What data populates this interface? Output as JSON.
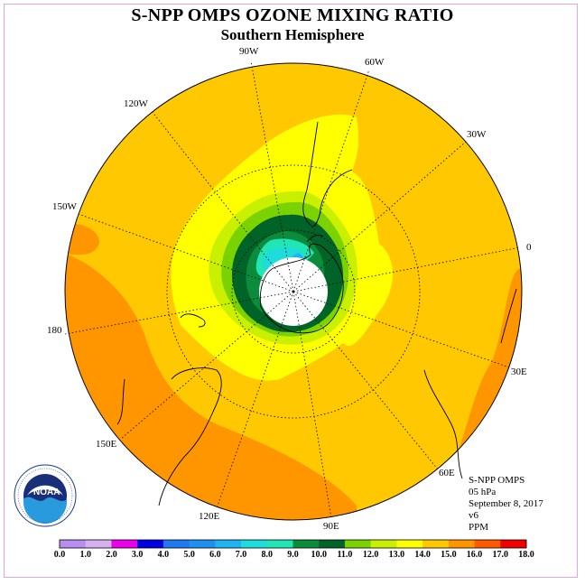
{
  "title": "S-NPP OMPS OZONE MIXING RATIO",
  "subtitle": "Southern Hemisphere",
  "longitude_labels": [
    "90W",
    "60W",
    "30W",
    "0",
    "30E",
    "60E",
    "90E",
    "120E",
    "150E",
    "180",
    "150W",
    "120W"
  ],
  "info": {
    "instrument": "S-NPP OMPS",
    "level": "05 hPa",
    "date": "September 8, 2017",
    "version": "v6",
    "units": "PPM"
  },
  "logo": {
    "text": "NOAA",
    "ring_text": "NATIONAL OCEANIC AND ATMOSPHERIC ADMINISTRATION · U.S. DEPARTMENT OF COMMERCE"
  },
  "colorbar": {
    "ticks": [
      "0.0",
      "1.0",
      "2.0",
      "3.0",
      "4.0",
      "5.0",
      "6.0",
      "7.0",
      "8.0",
      "9.0",
      "10.0",
      "11.0",
      "12.0",
      "13.0",
      "14.0",
      "15.0",
      "16.0",
      "17.0",
      "18.0"
    ],
    "colors": [
      "#b98cf0",
      "#d6b0f2",
      "#ea00ea",
      "#0000e0",
      "#1e78f0",
      "#1e90f0",
      "#1eb4f0",
      "#1edcdc",
      "#1fe6b4",
      "#0a8c3c",
      "#006428",
      "#7ad200",
      "#c8f000",
      "#ffff00",
      "#ffc800",
      "#ff9600",
      "#ff5a00",
      "#f00000",
      "#8c5a3c"
    ]
  },
  "colors": {
    "background_ozone": "#ffc800",
    "high_ozone": "#ff9600",
    "polar_night": "#ffffff",
    "frame": "#e0a6e4"
  }
}
